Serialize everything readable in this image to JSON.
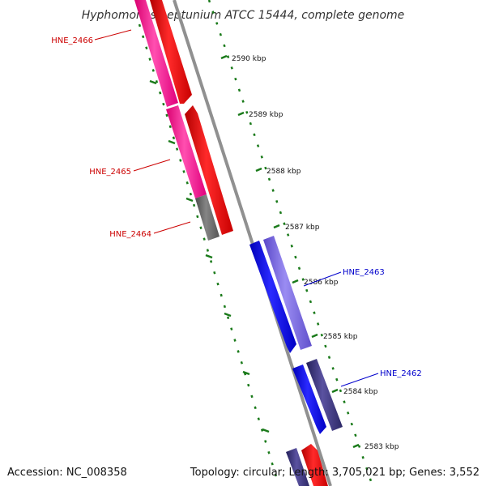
{
  "title": "Hyphomonas neptunium ATCC 15444, complete genome",
  "footer": {
    "accession": "Accession: NC_008358",
    "summary": "Topology: circular; Length: 3,705,021 bp; Genes: 3,552"
  },
  "colors": {
    "forward_label": "#cc0000",
    "reverse_label": "#0000cc",
    "backbone": "#8c8c8c",
    "tick": "#1a7a1a",
    "forward_cds": "#ff1a1a",
    "forward_gene": "#ff2d9b",
    "forward_other": "#6e6e6e",
    "reverse_cds": "#1a1aff",
    "reverse_gene": "#7a6ae6",
    "reverse_other": "#3c3478"
  },
  "scale_labels": [
    "2590 kbp",
    "2589 kbp",
    "2588 kbp",
    "2587 kbp",
    "2586 kbp",
    "2585 kbp",
    "2584 kbp",
    "2583 kbp"
  ],
  "genes": [
    {
      "name": "HNE_2466",
      "strand": "forward"
    },
    {
      "name": "HNE_2465",
      "strand": "forward"
    },
    {
      "name": "HNE_2464",
      "strand": "forward"
    },
    {
      "name": "HNE_2463",
      "strand": "reverse"
    },
    {
      "name": "HNE_2462",
      "strand": "reverse"
    }
  ]
}
